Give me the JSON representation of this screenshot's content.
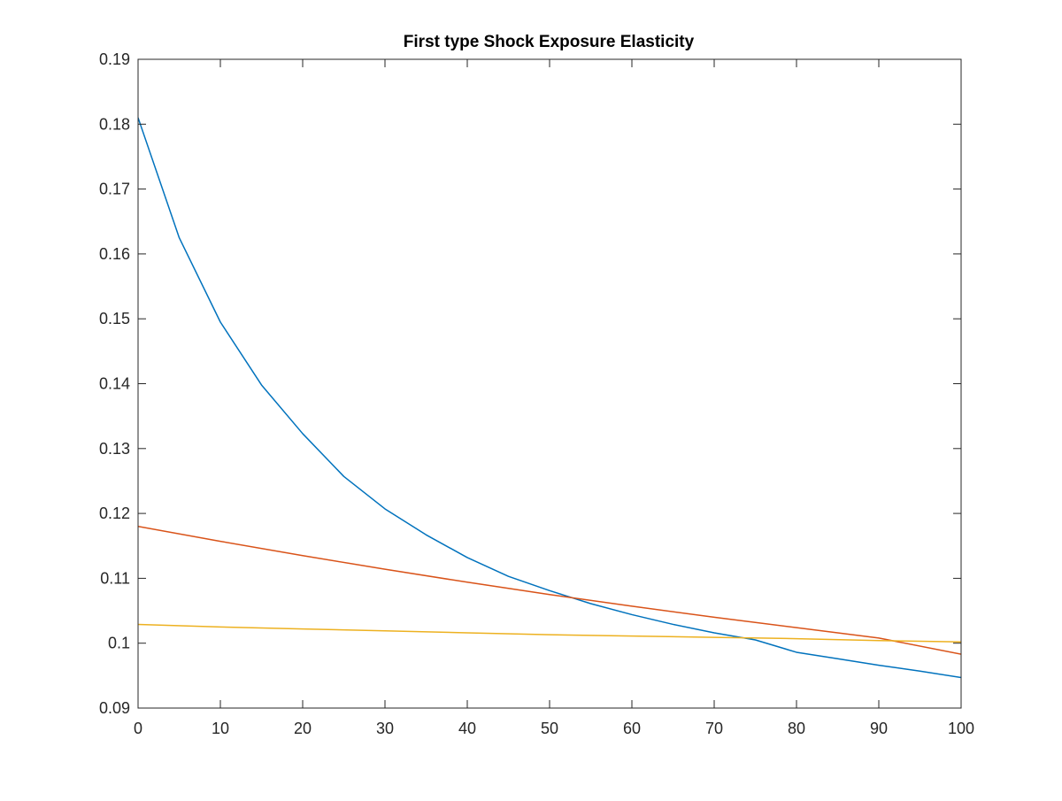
{
  "chart_data": {
    "type": "line",
    "title": "First type Shock Exposure Elasticity",
    "xlabel": "",
    "ylabel": "",
    "xlim": [
      0,
      100
    ],
    "ylim": [
      0.09,
      0.19
    ],
    "xticks": [
      0,
      10,
      20,
      30,
      40,
      50,
      60,
      70,
      80,
      90,
      100
    ],
    "yticks": [
      0.09,
      0.1,
      0.11,
      0.12,
      0.13,
      0.14,
      0.15,
      0.16,
      0.17,
      0.18,
      0.19
    ],
    "xtick_labels": [
      "0",
      "10",
      "20",
      "30",
      "40",
      "50",
      "60",
      "70",
      "80",
      "90",
      "100"
    ],
    "ytick_labels": [
      "0.09",
      "0.1",
      "0.11",
      "0.12",
      "0.13",
      "0.14",
      "0.15",
      "0.16",
      "0.17",
      "0.18",
      "0.19"
    ],
    "grid": false,
    "box": true,
    "series": [
      {
        "color": "#0072BD",
        "x": [
          0,
          5,
          10,
          15,
          20,
          25,
          30,
          35,
          40,
          45,
          50,
          55,
          60,
          65,
          70,
          75,
          80,
          85,
          90,
          95,
          100
        ],
        "y": [
          0.181,
          0.1625,
          0.1495,
          0.1398,
          0.1323,
          0.1257,
          0.1207,
          0.1167,
          0.1132,
          0.1103,
          0.1081,
          0.1061,
          0.1044,
          0.1029,
          0.1016,
          0.1005,
          0.0986,
          0.0976,
          0.0966,
          0.0957,
          0.0947
        ]
      },
      {
        "color": "#D95319",
        "x": [
          0,
          10,
          20,
          30,
          40,
          50,
          60,
          70,
          80,
          90,
          100
        ],
        "y": [
          0.118,
          0.1157,
          0.1135,
          0.1114,
          0.1094,
          0.1075,
          0.1057,
          0.104,
          0.1024,
          0.1008,
          0.0983
        ]
      },
      {
        "color": "#EDB120",
        "x": [
          0,
          10,
          20,
          30,
          40,
          50,
          60,
          70,
          80,
          90,
          100
        ],
        "y": [
          0.1029,
          0.1025,
          0.1022,
          0.1019,
          0.1016,
          0.1013,
          0.1011,
          0.1009,
          0.1007,
          0.1004,
          0.1002
        ]
      }
    ]
  }
}
